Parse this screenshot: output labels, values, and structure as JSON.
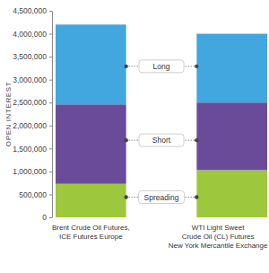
{
  "chart_data": {
    "type": "bar",
    "stacked": true,
    "ylabel": "OPEN INTEREST",
    "categories": [
      "Brent Crude Oil Futures,\nICE Futures Europe",
      "WTI Light Sweet\nCrude Oil (CL) Futures\nNew York Mercantile Exchange"
    ],
    "series": [
      {
        "name": "Spreading",
        "color": "#9dc83e",
        "values": [
          730000,
          1030000
        ]
      },
      {
        "name": "Short",
        "color": "#6a4b9a",
        "values": [
          1730000,
          1470000
        ]
      },
      {
        "name": "Long",
        "color": "#42a7de",
        "values": [
          1740000,
          1500000
        ]
      }
    ],
    "ylim": [
      0,
      4500000
    ],
    "yticks": [
      0,
      {
        "value": 500000,
        "label": "500,000"
      },
      {
        "value": 1000000,
        "label": "1,000,000"
      },
      {
        "value": 1500000,
        "label": "1,500,000"
      },
      {
        "value": 2000000,
        "label": "2,000,000"
      },
      {
        "value": 2500000,
        "label": "2,500,000"
      },
      {
        "value": 3000000,
        "label": "3,000,000"
      },
      {
        "value": 3500000,
        "label": "3,500,000"
      },
      {
        "value": 4000000,
        "label": "4,000,000"
      },
      {
        "value": 4500000,
        "label": "4,500,000"
      }
    ],
    "grid": false,
    "legend": "center"
  }
}
